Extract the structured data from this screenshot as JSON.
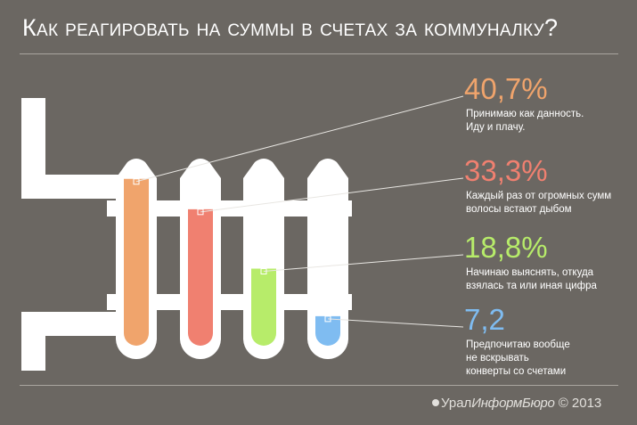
{
  "title": "Как реагировать на суммы в счетах за коммуналку?",
  "credit": {
    "brand_prefix": "Урал",
    "brand_suffix": "ИнформБюро",
    "copyright": "© 2013"
  },
  "colors": {
    "background": "#6b6762",
    "radiator": "#ffffff",
    "series": [
      "#f0a46c",
      "#f08070",
      "#b7ec6a",
      "#7fbcf1"
    ]
  },
  "chart_data": {
    "type": "bar",
    "title": "Как реагировать на суммы в счетах за коммуналку?",
    "ylim": [
      0,
      45
    ],
    "categories": [
      "Принимаю как данность. Иду и плачу.",
      "Каждый раз от огромных сумм волосы встают дыбом",
      "Начинаю выяснять, откуда взялась та или иная цифра",
      "Предпочитаю вообще не вскрывать конверты со счетами"
    ],
    "values": [
      40.7,
      33.3,
      18.8,
      7.2
    ],
    "labels": [
      {
        "value_text": "40,7%",
        "lines": [
          "Принимаю как данность.",
          "Иду и плачу."
        ]
      },
      {
        "value_text": "33,3%",
        "lines": [
          "Каждый раз от огромных сумм",
          "волосы встают дыбом"
        ]
      },
      {
        "value_text": "18,8%",
        "lines": [
          "Начинаю выяснять, откуда",
          "взялась та или иная цифра"
        ]
      },
      {
        "value_text": "7,2",
        "lines": [
          "Предпочитаю вообще",
          "не вскрывать",
          "конверты со счетами"
        ]
      }
    ]
  }
}
